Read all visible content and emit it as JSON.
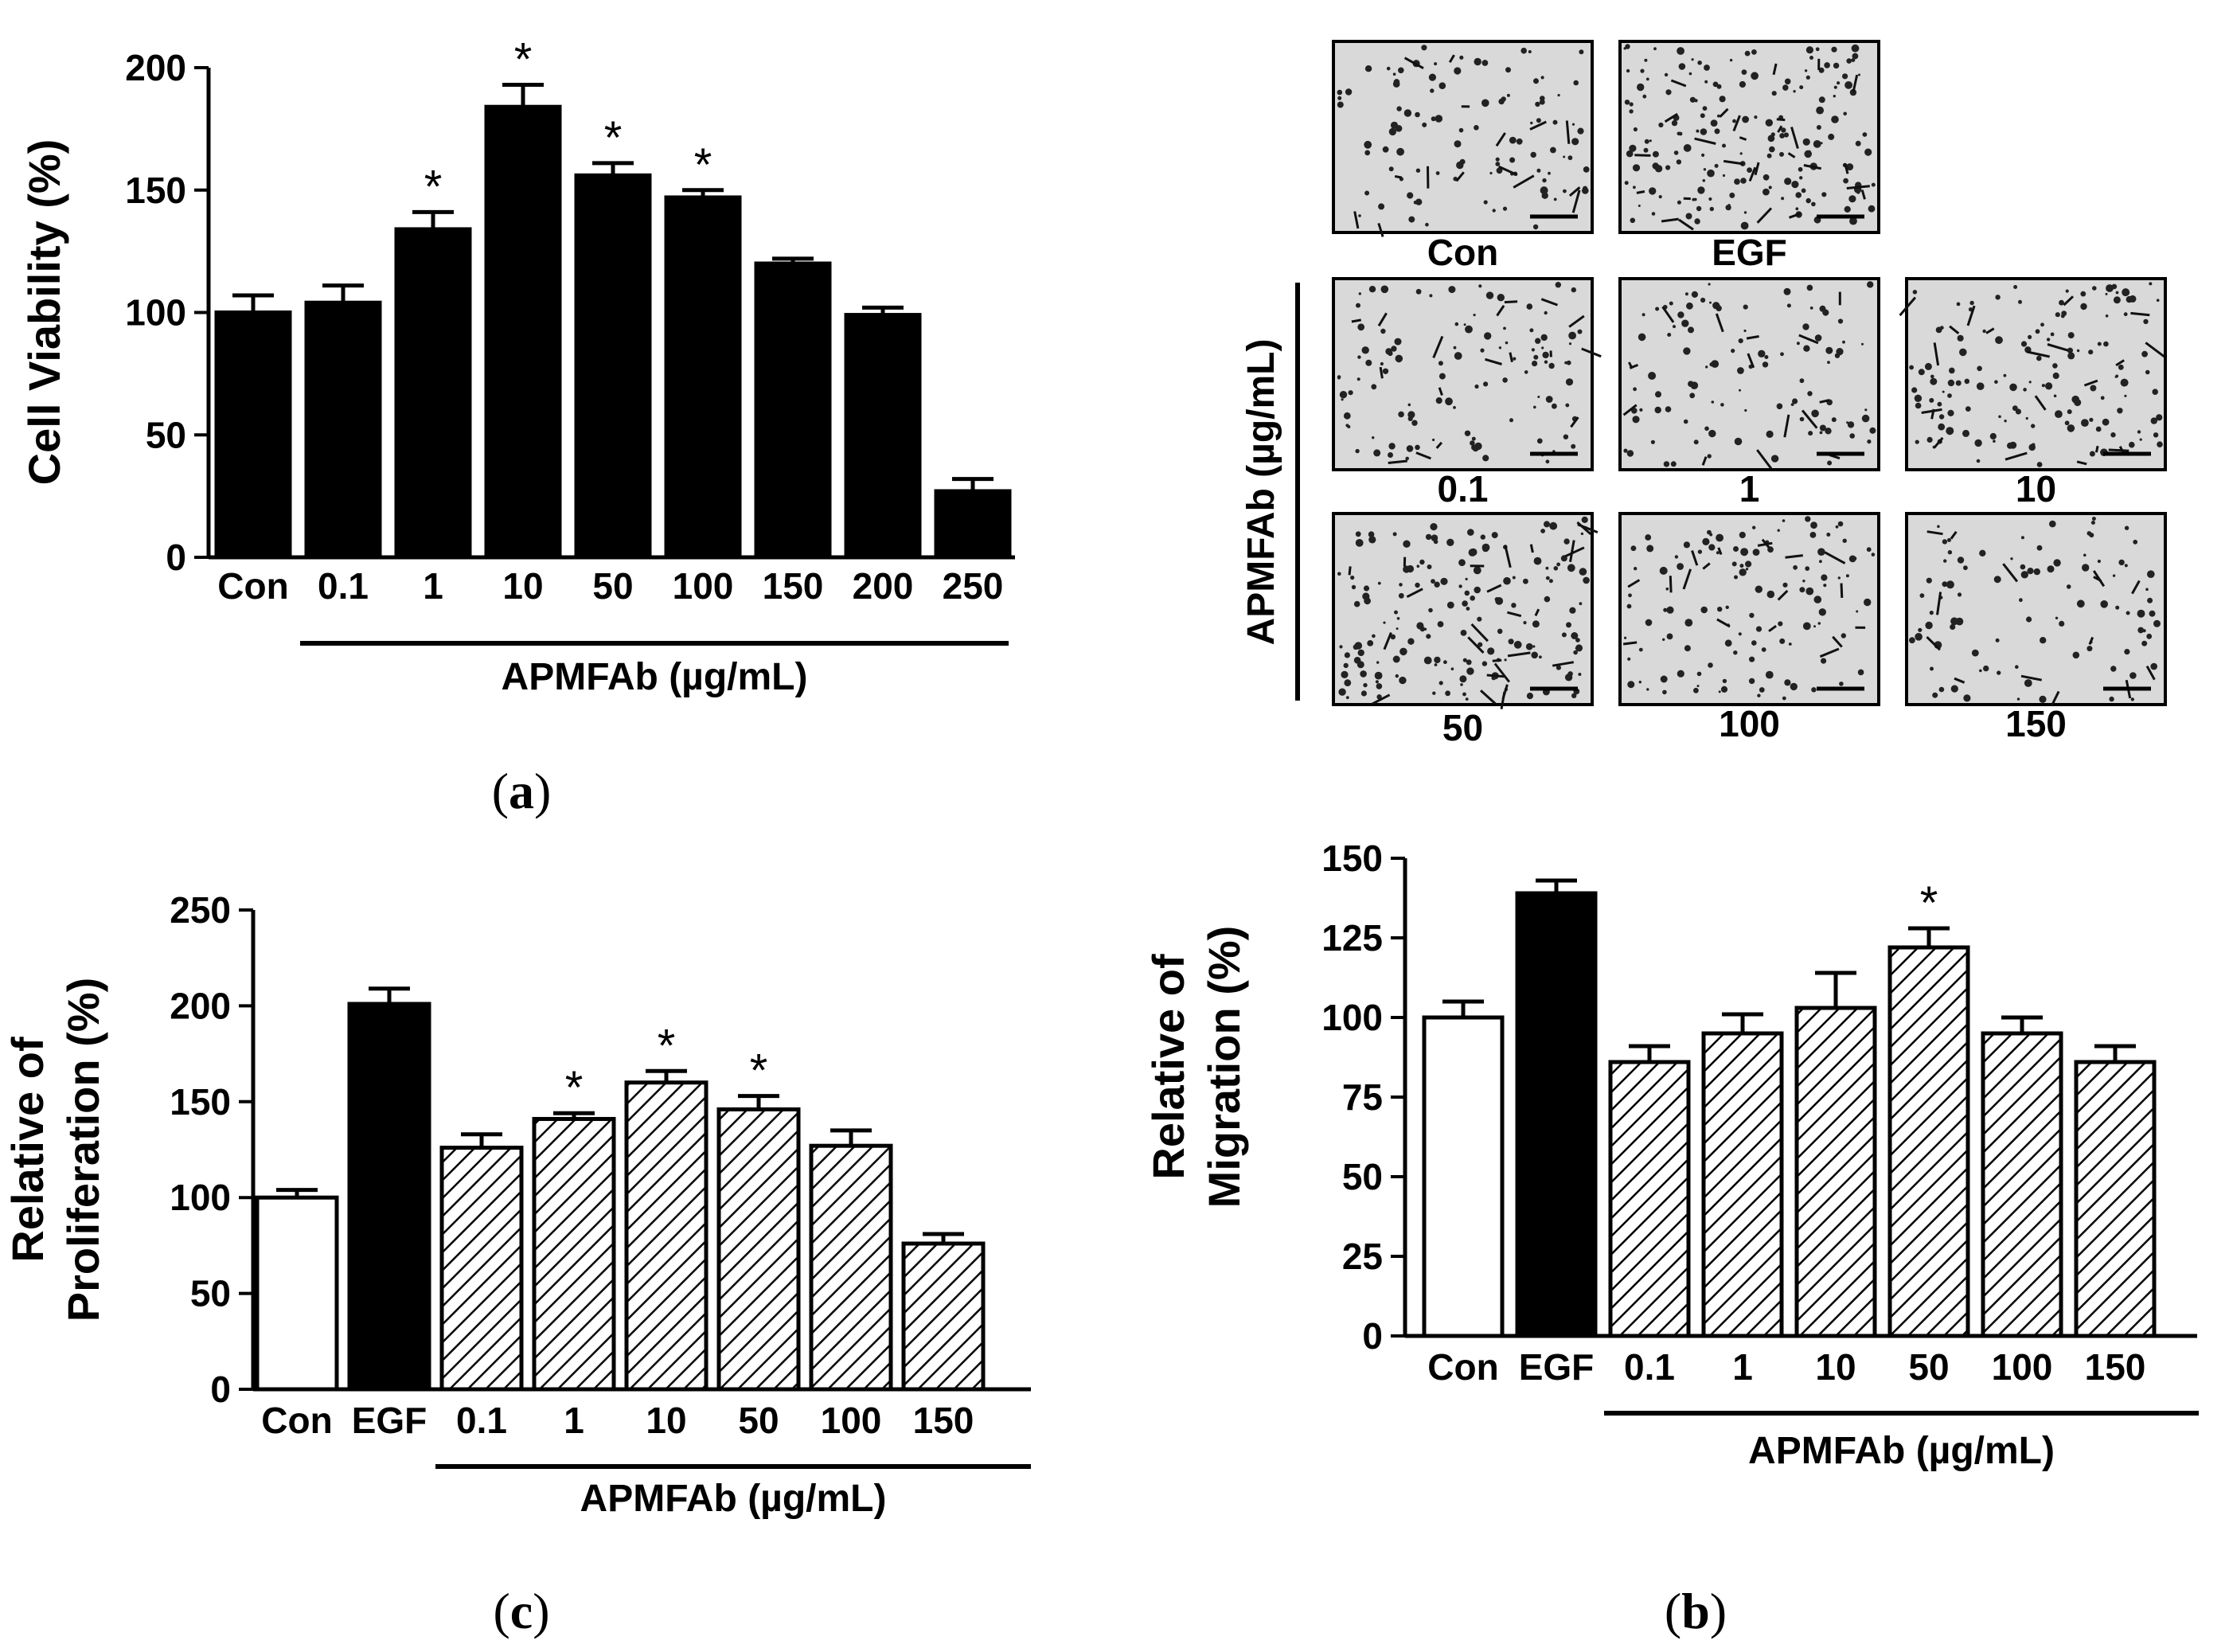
{
  "chart_data": [
    {
      "id": "a",
      "type": "bar",
      "panel_label": "a",
      "title": "",
      "ylabel": "Cell Viability (%)",
      "xlabel": "APMFAb (µg/mL)",
      "ylim": [
        0,
        200
      ],
      "yticks": [
        0,
        50,
        100,
        150,
        200
      ],
      "categories": [
        "Con",
        "0.1",
        "1",
        "10",
        "50",
        "100",
        "150",
        "200",
        "250"
      ],
      "values": [
        100,
        104,
        134,
        184,
        156,
        147,
        120,
        99,
        27
      ],
      "errors": [
        7,
        7,
        7,
        9,
        5,
        3,
        2,
        3,
        5
      ],
      "fills": [
        "solid",
        "solid",
        "solid",
        "solid",
        "solid",
        "solid",
        "solid",
        "solid",
        "solid"
      ],
      "significant": [
        false,
        false,
        true,
        true,
        true,
        true,
        false,
        false,
        false
      ],
      "star_symbol": "*",
      "group_bar_from_index": 1
    },
    {
      "id": "c",
      "type": "bar",
      "panel_label": "c",
      "title": "",
      "ylabel_lines": [
        "Relative of",
        "Proliferation (%)"
      ],
      "xlabel": "APMFAb (µg/mL)",
      "ylim": [
        0,
        250
      ],
      "yticks": [
        0,
        50,
        100,
        150,
        200,
        250
      ],
      "categories": [
        "Con",
        "EGF",
        "0.1",
        "1",
        "10",
        "50",
        "100",
        "150"
      ],
      "values": [
        100,
        201,
        126,
        141,
        160,
        146,
        127,
        76
      ],
      "errors": [
        4,
        8,
        7,
        3,
        6,
        7,
        8,
        5
      ],
      "fills": [
        "white",
        "solid",
        "hatch",
        "hatch",
        "hatch",
        "hatch",
        "hatch",
        "hatch"
      ],
      "significant": [
        false,
        false,
        false,
        true,
        true,
        true,
        false,
        false
      ],
      "star_symbol": "*",
      "group_bar_from_index": 2
    },
    {
      "id": "b",
      "type": "bar",
      "panel_label": "b",
      "title": "",
      "ylabel_lines": [
        "Relative of",
        "Migration (%)"
      ],
      "xlabel": "APMFAb (µg/mL)",
      "ylim": [
        0,
        150
      ],
      "yticks": [
        0,
        25,
        50,
        75,
        100,
        125,
        150
      ],
      "categories": [
        "Con",
        "EGF",
        "0.1",
        "1",
        "10",
        "50",
        "100",
        "150"
      ],
      "values": [
        100,
        139,
        86,
        95,
        103,
        122,
        95,
        86
      ],
      "errors": [
        5,
        4,
        5,
        6,
        11,
        6,
        5,
        5
      ],
      "fills": [
        "white",
        "solid",
        "hatch",
        "hatch",
        "hatch",
        "hatch",
        "hatch",
        "hatch"
      ],
      "significant": [
        false,
        false,
        false,
        false,
        false,
        true,
        false,
        false
      ],
      "star_symbol": "*",
      "group_bar_from_index": 2
    }
  ],
  "micrographs": {
    "vertical_label": "APMFAb (µg/mL)",
    "items": [
      {
        "label": "Con",
        "density": 0.55
      },
      {
        "label": "EGF",
        "density": 0.95
      },
      {
        "label": "0.1",
        "density": 0.6
      },
      {
        "label": "1",
        "density": 0.55
      },
      {
        "label": "10",
        "density": 0.75
      },
      {
        "label": "50",
        "density": 0.9
      },
      {
        "label": "100",
        "density": 0.65
      },
      {
        "label": "150",
        "density": 0.5
      }
    ]
  },
  "colors": {
    "bar": "#000000",
    "background": "#ffffff",
    "micrograph_bg": "#d9d9d9"
  }
}
